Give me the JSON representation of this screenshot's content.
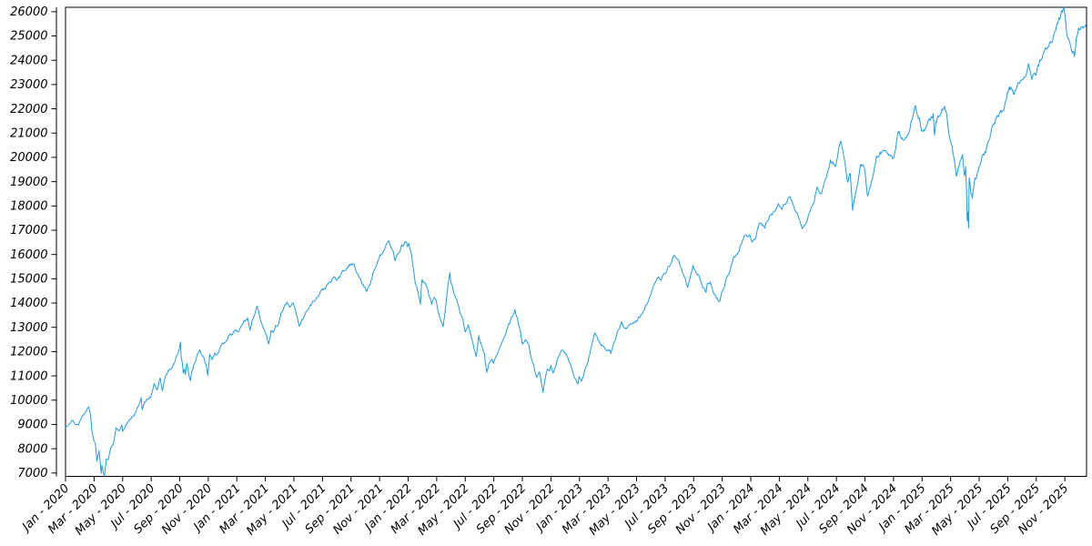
{
  "chart_data": {
    "type": "line",
    "background_color": "#FFFFFF",
    "line_color": "#1F9BE6",
    "axis_color": "#000000",
    "grid": false,
    "legend": false,
    "x_label_rotation_deg": 45,
    "x_axis": {
      "lim_months": [
        0,
        71.52
      ],
      "tick_months": [
        0,
        2,
        4,
        6,
        8,
        10,
        12,
        14,
        16,
        18,
        20,
        22,
        24,
        26,
        28,
        30,
        32,
        34,
        36,
        38,
        40,
        42,
        44,
        46,
        48,
        50,
        52,
        54,
        56,
        58,
        60,
        62,
        64,
        66,
        68,
        70
      ],
      "tick_labels": [
        "Jan - 2020",
        "Mar - 2020",
        "May - 2020",
        "Jul - 2020",
        "Sep - 2020",
        "Nov - 2020",
        "Jan - 2021",
        "Mar - 2021",
        "May - 2021",
        "Jul - 2021",
        "Sep - 2021",
        "Nov - 2021",
        "Jan - 2022",
        "Mar - 2022",
        "May - 2022",
        "Jul - 2022",
        "Sep - 2022",
        "Nov - 2022",
        "Jan - 2023",
        "Mar - 2023",
        "May - 2023",
        "Jul - 2023",
        "Sep - 2023",
        "Nov - 2023",
        "Jan - 2024",
        "Mar - 2024",
        "May - 2024",
        "Jul - 2024",
        "Sep - 2024",
        "Nov - 2024",
        "Jan - 2025",
        "Mar - 2025",
        "May - 2025",
        "Jul - 2025",
        "Sep - 2025",
        "Nov - 2025"
      ]
    },
    "y_axis": {
      "lim": [
        6861,
        26182
      ],
      "tick_values": [
        7000,
        8000,
        9000,
        10000,
        11000,
        12000,
        13000,
        14000,
        15000,
        16000,
        17000,
        18000,
        19000,
        20000,
        21000,
        22000,
        23000,
        24000,
        25000,
        26000
      ]
    },
    "points_months_value": [
      [
        0,
        8870
      ],
      [
        0.25,
        9060
      ],
      [
        0.5,
        9155
      ],
      [
        0.7,
        9010
      ],
      [
        0.9,
        8991
      ],
      [
        1.15,
        9320
      ],
      [
        1.45,
        9590
      ],
      [
        1.62,
        9718
      ],
      [
        1.75,
        9440
      ],
      [
        1.85,
        8740
      ],
      [
        1.95,
        8461
      ],
      [
        2.1,
        8180
      ],
      [
        2.2,
        7510
      ],
      [
        2.35,
        7950
      ],
      [
        2.5,
        7006
      ],
      [
        2.55,
        7334
      ],
      [
        2.65,
        6994
      ],
      [
        2.73,
        6861
      ],
      [
        2.85,
        7570
      ],
      [
        3.0,
        7590
      ],
      [
        3.2,
        8081
      ],
      [
        3.35,
        8153
      ],
      [
        3.45,
        8515
      ],
      [
        3.55,
        8832
      ],
      [
        3.75,
        8700
      ],
      [
        3.95,
        9000
      ],
      [
        4.0,
        8718
      ],
      [
        4.2,
        8950
      ],
      [
        4.47,
        9152
      ],
      [
        4.65,
        9330
      ],
      [
        4.8,
        9380
      ],
      [
        4.97,
        9556
      ],
      [
        5.15,
        9850
      ],
      [
        5.3,
        10095
      ],
      [
        5.37,
        9589
      ],
      [
        5.55,
        9900
      ],
      [
        5.75,
        10056
      ],
      [
        5.97,
        10156
      ],
      [
        6.2,
        10650
      ],
      [
        6.4,
        10390
      ],
      [
        6.63,
        10930
      ],
      [
        6.77,
        10363
      ],
      [
        6.97,
        10905
      ],
      [
        7.2,
        11210
      ],
      [
        7.45,
        11320
      ],
      [
        7.65,
        11550
      ],
      [
        7.9,
        11995
      ],
      [
        7.97,
        12110
      ],
      [
        8.05,
        12420
      ],
      [
        8.1,
        11771
      ],
      [
        8.17,
        11622
      ],
      [
        8.25,
        11068
      ],
      [
        8.33,
        11300
      ],
      [
        8.4,
        11087
      ],
      [
        8.5,
        11471
      ],
      [
        8.6,
        11200
      ],
      [
        8.68,
        10936
      ],
      [
        8.75,
        10833
      ],
      [
        8.83,
        11151
      ],
      [
        8.97,
        11418
      ],
      [
        9.1,
        11580
      ],
      [
        9.25,
        11920
      ],
      [
        9.4,
        12088
      ],
      [
        9.55,
        11852
      ],
      [
        9.7,
        11700
      ],
      [
        9.9,
        11305
      ],
      [
        9.97,
        11052
      ],
      [
        10.1,
        11890
      ],
      [
        10.28,
        11714
      ],
      [
        10.45,
        11940
      ],
      [
        10.6,
        11880
      ],
      [
        10.75,
        12050
      ],
      [
        10.97,
        12268
      ],
      [
        11.2,
        12440
      ],
      [
        11.45,
        12620
      ],
      [
        11.7,
        12740
      ],
      [
        11.97,
        12888
      ],
      [
        12.1,
        12800
      ],
      [
        12.28,
        13000
      ],
      [
        12.5,
        13250
      ],
      [
        12.75,
        13366
      ],
      [
        12.93,
        12925
      ],
      [
        13.1,
        13290
      ],
      [
        13.4,
        13807
      ],
      [
        13.5,
        13771
      ],
      [
        13.7,
        13200
      ],
      [
        13.9,
        12880
      ],
      [
        14.1,
        12680
      ],
      [
        14.22,
        12299
      ],
      [
        14.4,
        12850
      ],
      [
        14.55,
        12790
      ],
      [
        14.72,
        13060
      ],
      [
        14.93,
        13091
      ],
      [
        15.1,
        13550
      ],
      [
        15.3,
        13790
      ],
      [
        15.5,
        14041
      ],
      [
        15.7,
        13850
      ],
      [
        15.93,
        14027
      ],
      [
        16.1,
        13740
      ],
      [
        16.25,
        13370
      ],
      [
        16.37,
        13002
      ],
      [
        16.55,
        13290
      ],
      [
        16.75,
        13530
      ],
      [
        16.93,
        13686
      ],
      [
        17.1,
        13840
      ],
      [
        17.3,
        14030
      ],
      [
        17.5,
        14180
      ],
      [
        17.7,
        14270
      ],
      [
        17.9,
        14500
      ],
      [
        18.1,
        14580
      ],
      [
        18.3,
        14700
      ],
      [
        18.5,
        14840
      ],
      [
        18.7,
        14950
      ],
      [
        18.83,
        15058
      ],
      [
        19.0,
        14960
      ],
      [
        19.2,
        15080
      ],
      [
        19.4,
        15280
      ],
      [
        19.6,
        15380
      ],
      [
        19.8,
        15500
      ],
      [
        20.0,
        15582
      ],
      [
        20.2,
        15675
      ],
      [
        20.35,
        15330
      ],
      [
        20.5,
        15170
      ],
      [
        20.7,
        14890
      ],
      [
        20.9,
        14690
      ],
      [
        21.1,
        14472
      ],
      [
        21.3,
        14740
      ],
      [
        21.5,
        15140
      ],
      [
        21.72,
        15430
      ],
      [
        21.95,
        15850
      ],
      [
        22.15,
        16040
      ],
      [
        22.35,
        16250
      ],
      [
        22.6,
        16573
      ],
      [
        22.8,
        16380
      ],
      [
        22.95,
        16160
      ],
      [
        23.08,
        15712
      ],
      [
        23.3,
        16080
      ],
      [
        23.55,
        16330
      ],
      [
        23.85,
        16567
      ],
      [
        23.95,
        16320
      ],
      [
        24.05,
        16501
      ],
      [
        24.25,
        15900
      ],
      [
        24.5,
        14800
      ],
      [
        24.7,
        14450
      ],
      [
        24.86,
        14003
      ],
      [
        24.95,
        14930
      ],
      [
        25.15,
        14820
      ],
      [
        25.3,
        14706
      ],
      [
        25.5,
        14250
      ],
      [
        25.65,
        13900
      ],
      [
        25.78,
        14223
      ],
      [
        25.95,
        14190
      ],
      [
        26.1,
        13620
      ],
      [
        26.45,
        13048
      ],
      [
        26.6,
        13700
      ],
      [
        26.75,
        14500
      ],
      [
        26.92,
        15239
      ],
      [
        27.0,
        14838
      ],
      [
        27.2,
        14450
      ],
      [
        27.45,
        14100
      ],
      [
        27.65,
        13620
      ],
      [
        27.85,
        13230
      ],
      [
        28.0,
        12855
      ],
      [
        28.2,
        13100
      ],
      [
        28.45,
        12560
      ],
      [
        28.6,
        12160
      ],
      [
        28.77,
        11769
      ],
      [
        28.95,
        12642
      ],
      [
        29.15,
        12200
      ],
      [
        29.35,
        11880
      ],
      [
        29.5,
        11127
      ],
      [
        29.65,
        11480
      ],
      [
        29.85,
        11720
      ],
      [
        29.97,
        11504
      ],
      [
        30.15,
        11780
      ],
      [
        30.4,
        12120
      ],
      [
        30.65,
        12460
      ],
      [
        30.95,
        12948
      ],
      [
        31.15,
        13220
      ],
      [
        31.47,
        13697
      ],
      [
        31.65,
        13340
      ],
      [
        31.85,
        12900
      ],
      [
        32.0,
        12272
      ],
      [
        32.2,
        12450
      ],
      [
        32.45,
        12270
      ],
      [
        32.6,
        11770
      ],
      [
        32.8,
        11400
      ],
      [
        33.0,
        10971
      ],
      [
        33.2,
        11150
      ],
      [
        33.45,
        10321
      ],
      [
        33.6,
        10910
      ],
      [
        33.75,
        11310
      ],
      [
        33.9,
        11210
      ],
      [
        34.0,
        11406
      ],
      [
        34.15,
        11150
      ],
      [
        34.3,
        11360
      ],
      [
        34.5,
        11760
      ],
      [
        34.72,
        12020
      ],
      [
        34.95,
        12030
      ],
      [
        35.15,
        11800
      ],
      [
        35.35,
        11500
      ],
      [
        35.6,
        10990
      ],
      [
        35.9,
        10679
      ],
      [
        35.97,
        10940
      ],
      [
        36.15,
        10740
      ],
      [
        36.35,
        11200
      ],
      [
        36.6,
        11550
      ],
      [
        36.8,
        12101
      ],
      [
        37.07,
        12803
      ],
      [
        37.25,
        12550
      ],
      [
        37.5,
        12300
      ],
      [
        37.7,
        12190
      ],
      [
        37.9,
        12042
      ],
      [
        38.1,
        12120
      ],
      [
        38.2,
        11923
      ],
      [
        38.45,
        12380
      ],
      [
        38.65,
        12800
      ],
      [
        38.95,
        13181
      ],
      [
        39.15,
        12950
      ],
      [
        39.35,
        13000
      ],
      [
        39.55,
        13100
      ],
      [
        39.75,
        13200
      ],
      [
        39.95,
        13245
      ],
      [
        40.2,
        13420
      ],
      [
        40.45,
        13600
      ],
      [
        40.7,
        13950
      ],
      [
        40.9,
        14254
      ],
      [
        41.15,
        14600
      ],
      [
        41.35,
        14870
      ],
      [
        41.5,
        15083
      ],
      [
        41.7,
        15000
      ],
      [
        41.95,
        15179
      ],
      [
        42.2,
        15450
      ],
      [
        42.45,
        15700
      ],
      [
        42.57,
        15932
      ],
      [
        42.8,
        15830
      ],
      [
        42.97,
        15757
      ],
      [
        43.2,
        15310
      ],
      [
        43.4,
        15000
      ],
      [
        43.58,
        14694
      ],
      [
        43.75,
        15000
      ],
      [
        43.95,
        15501
      ],
      [
        44.15,
        15280
      ],
      [
        44.4,
        15050
      ],
      [
        44.6,
        14700
      ],
      [
        44.87,
        14420
      ],
      [
        44.95,
        14715
      ],
      [
        45.15,
        14890
      ],
      [
        45.4,
        14400
      ],
      [
        45.6,
        14200
      ],
      [
        45.84,
        14058
      ],
      [
        45.97,
        14410
      ],
      [
        46.2,
        14800
      ],
      [
        46.5,
        15310
      ],
      [
        46.8,
        15950
      ],
      [
        47.0,
        15960
      ],
      [
        47.25,
        16300
      ],
      [
        47.57,
        16812
      ],
      [
        47.75,
        16700
      ],
      [
        47.95,
        16826
      ],
      [
        48.1,
        16540
      ],
      [
        48.3,
        16600
      ],
      [
        48.62,
        17314
      ],
      [
        48.8,
        17200
      ],
      [
        48.97,
        17137
      ],
      [
        49.2,
        17440
      ],
      [
        49.5,
        17690
      ],
      [
        49.75,
        17937
      ],
      [
        49.95,
        18043
      ],
      [
        50.2,
        17900
      ],
      [
        50.45,
        18100
      ],
      [
        50.67,
        18339
      ],
      [
        50.9,
        18255
      ],
      [
        51.1,
        17900
      ],
      [
        51.35,
        17450
      ],
      [
        51.6,
        17037
      ],
      [
        51.8,
        17250
      ],
      [
        51.97,
        17441
      ],
      [
        52.2,
        17850
      ],
      [
        52.45,
        18250
      ],
      [
        52.63,
        18713
      ],
      [
        52.85,
        18600
      ],
      [
        52.97,
        18536
      ],
      [
        53.2,
        19000
      ],
      [
        53.45,
        19450
      ],
      [
        53.58,
        19909
      ],
      [
        53.75,
        19750
      ],
      [
        53.97,
        19683
      ],
      [
        54.15,
        20300
      ],
      [
        54.3,
        20675
      ],
      [
        54.5,
        20100
      ],
      [
        54.65,
        19600
      ],
      [
        54.78,
        19032
      ],
      [
        54.97,
        19362
      ],
      [
        55.13,
        17895
      ],
      [
        55.3,
        18420
      ],
      [
        55.5,
        18950
      ],
      [
        55.7,
        19720
      ],
      [
        55.97,
        19575
      ],
      [
        56.18,
        18421
      ],
      [
        56.4,
        18900
      ],
      [
        56.6,
        19300
      ],
      [
        56.83,
        20115
      ],
      [
        56.97,
        20061
      ],
      [
        57.2,
        20270
      ],
      [
        57.45,
        20350
      ],
      [
        57.7,
        20100
      ],
      [
        57.97,
        19890
      ],
      [
        58.15,
        20300
      ],
      [
        58.35,
        21100
      ],
      [
        58.55,
        20840
      ],
      [
        58.75,
        20700
      ],
      [
        58.97,
        20930
      ],
      [
        59.2,
        21350
      ],
      [
        59.5,
        22133
      ],
      [
        59.7,
        21760
      ],
      [
        59.85,
        21500
      ],
      [
        59.97,
        21012
      ],
      [
        60.05,
        21017
      ],
      [
        60.3,
        21240
      ],
      [
        60.55,
        21570
      ],
      [
        60.78,
        21774
      ],
      [
        60.87,
        20976
      ],
      [
        60.97,
        21478
      ],
      [
        61.2,
        21720
      ],
      [
        61.58,
        22175
      ],
      [
        61.75,
        21600
      ],
      [
        61.9,
        20884
      ],
      [
        62.1,
        20450
      ],
      [
        62.4,
        19225
      ],
      [
        62.6,
        19700
      ],
      [
        62.83,
        20066
      ],
      [
        62.97,
        19278
      ],
      [
        63.05,
        19581
      ],
      [
        63.12,
        18522
      ],
      [
        63.16,
        17398
      ],
      [
        63.2,
        17770
      ],
      [
        63.26,
        17090
      ],
      [
        63.3,
        19145
      ],
      [
        63.42,
        18600
      ],
      [
        63.52,
        18356
      ],
      [
        63.7,
        19050
      ],
      [
        63.85,
        19250
      ],
      [
        63.97,
        19571
      ],
      [
        64.2,
        20000
      ],
      [
        64.45,
        20250
      ],
      [
        64.7,
        20700
      ],
      [
        64.97,
        21341
      ],
      [
        65.2,
        21600
      ],
      [
        65.5,
        21850
      ],
      [
        65.75,
        22050
      ],
      [
        65.97,
        22679
      ],
      [
        66.2,
        22850
      ],
      [
        66.45,
        22600
      ],
      [
        66.7,
        23050
      ],
      [
        66.97,
        23218
      ],
      [
        67.2,
        23300
      ],
      [
        67.45,
        23800
      ],
      [
        67.7,
        23300
      ],
      [
        67.97,
        23415
      ],
      [
        68.2,
        23900
      ],
      [
        68.45,
        24250
      ],
      [
        68.7,
        24450
      ],
      [
        68.97,
        24680
      ],
      [
        69.15,
        24750
      ],
      [
        69.35,
        25250
      ],
      [
        69.6,
        25700
      ],
      [
        69.78,
        25950
      ],
      [
        69.93,
        26182
      ],
      [
        70.0,
        25858
      ],
      [
        70.15,
        25059
      ],
      [
        70.3,
        24800
      ],
      [
        70.45,
        24500
      ],
      [
        70.67,
        24200
      ],
      [
        70.8,
        24870
      ],
      [
        70.93,
        25320
      ],
      [
        71.05,
        25280
      ],
      [
        71.2,
        25440
      ],
      [
        71.5,
        25480
      ]
    ],
    "render": {
      "points_per_month": 21,
      "jitter_pct": 0.7,
      "seed": 13
    }
  }
}
